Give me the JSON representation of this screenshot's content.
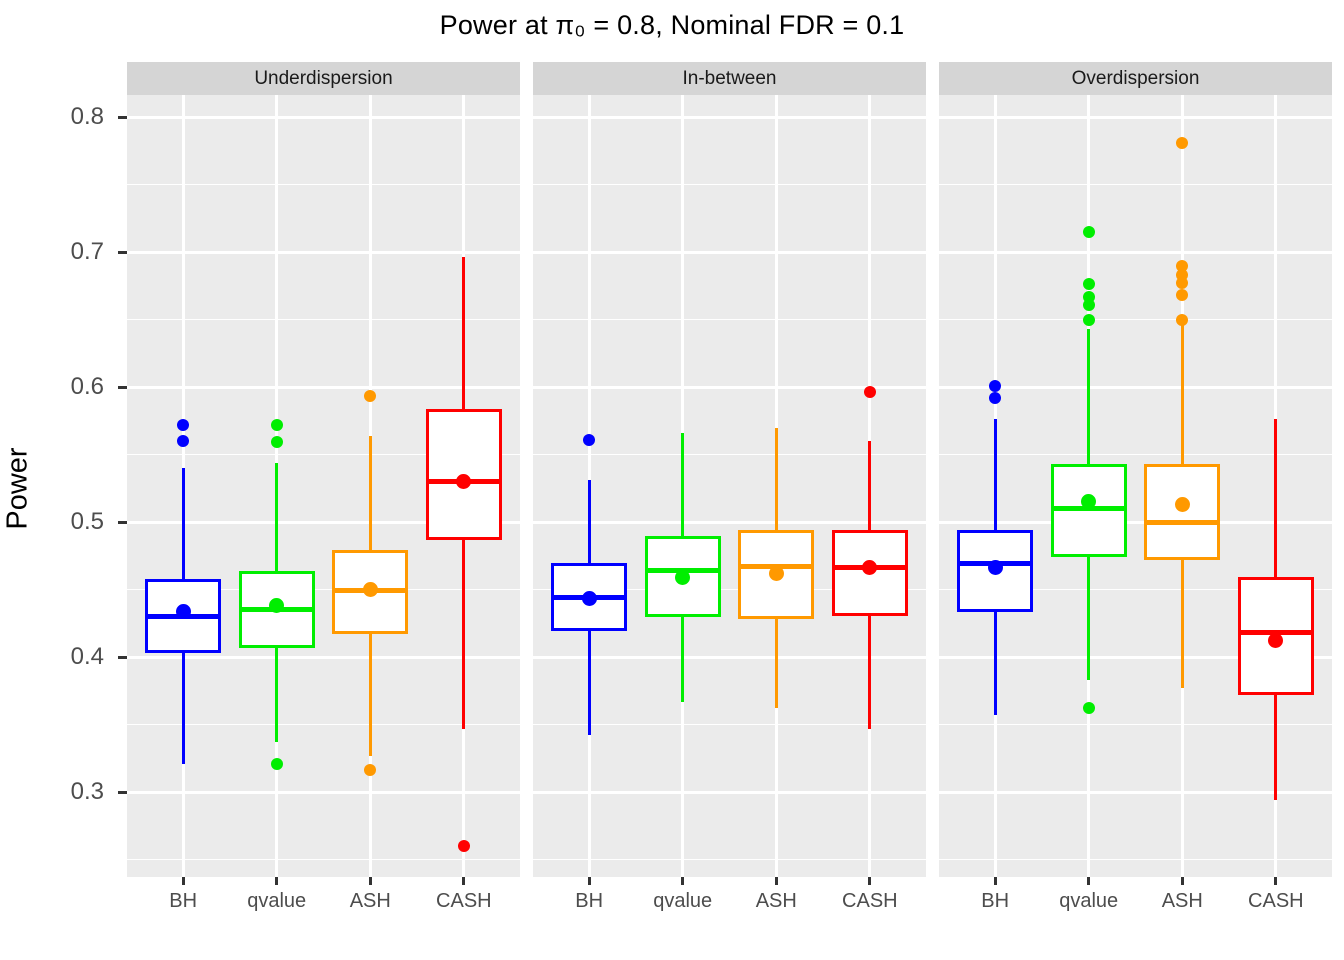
{
  "chart_data": {
    "type": "boxplot",
    "title": "Power at π₀ = 0.8, Nominal FDR = 0.1",
    "ylabel": "Power",
    "xlabel": "",
    "ylim": [
      0.237,
      0.816
    ],
    "y_ticks": [
      {
        "label": "0.8",
        "value": 0.8
      },
      {
        "label": "0.7",
        "value": 0.7
      },
      {
        "label": "0.6",
        "value": 0.6
      },
      {
        "label": "0.5",
        "value": 0.5
      },
      {
        "label": "0.4",
        "value": 0.4
      },
      {
        "label": "0.3",
        "value": 0.3
      }
    ],
    "grid": {
      "major_step": 0.1,
      "minor_step": 0.05,
      "lowest_line": 0.25,
      "highest_line": 0.8
    },
    "categories": [
      "BH",
      "qvalue",
      "ASH",
      "CASH"
    ],
    "colors": {
      "panel_bg": "#ebebeb",
      "strip_bg": "#d5d5d5",
      "grid": "#ffffff",
      "series": {
        "BH": "#0000ff",
        "qvalue": "#00ee00",
        "ASH": "#ff9900",
        "CASH": "#ff0000"
      }
    },
    "facets": [
      {
        "label": "Underdispersion",
        "boxes": [
          {
            "method": "BH",
            "whisker_low": 0.321,
            "q1": 0.403,
            "median": 0.43,
            "q3": 0.458,
            "whisker_high": 0.54,
            "mean": 0.434,
            "outliers": [
              0.572,
              0.56
            ]
          },
          {
            "method": "qvalue",
            "whisker_low": 0.337,
            "q1": 0.407,
            "median": 0.435,
            "q3": 0.464,
            "whisker_high": 0.544,
            "mean": 0.438,
            "outliers": [
              0.572,
              0.559,
              0.321
            ]
          },
          {
            "method": "ASH",
            "whisker_low": 0.327,
            "q1": 0.417,
            "median": 0.449,
            "q3": 0.479,
            "whisker_high": 0.564,
            "mean": 0.45,
            "outliers": [
              0.593,
              0.316
            ]
          },
          {
            "method": "CASH",
            "whisker_low": 0.347,
            "q1": 0.487,
            "median": 0.53,
            "q3": 0.584,
            "whisker_high": 0.696,
            "mean": 0.53,
            "outliers": [
              0.26
            ]
          }
        ]
      },
      {
        "label": "In-between",
        "boxes": [
          {
            "method": "BH",
            "whisker_low": 0.342,
            "q1": 0.419,
            "median": 0.444,
            "q3": 0.47,
            "whisker_high": 0.531,
            "mean": 0.443,
            "outliers": [
              0.561
            ]
          },
          {
            "method": "qvalue",
            "whisker_low": 0.367,
            "q1": 0.43,
            "median": 0.464,
            "q3": 0.49,
            "whisker_high": 0.566,
            "mean": 0.459,
            "outliers": []
          },
          {
            "method": "ASH",
            "whisker_low": 0.362,
            "q1": 0.428,
            "median": 0.467,
            "q3": 0.494,
            "whisker_high": 0.57,
            "mean": 0.462,
            "outliers": []
          },
          {
            "method": "CASH",
            "whisker_low": 0.347,
            "q1": 0.43,
            "median": 0.466,
            "q3": 0.494,
            "whisker_high": 0.56,
            "mean": 0.466,
            "outliers": [
              0.596
            ]
          }
        ]
      },
      {
        "label": "Overdispersion",
        "boxes": [
          {
            "method": "BH",
            "whisker_low": 0.357,
            "q1": 0.433,
            "median": 0.469,
            "q3": 0.494,
            "whisker_high": 0.576,
            "mean": 0.466,
            "outliers": [
              0.601,
              0.592
            ]
          },
          {
            "method": "qvalue",
            "whisker_low": 0.383,
            "q1": 0.474,
            "median": 0.51,
            "q3": 0.543,
            "whisker_high": 0.643,
            "mean": 0.515,
            "outliers": [
              0.715,
              0.676,
              0.667,
              0.661,
              0.65,
              0.362
            ]
          },
          {
            "method": "ASH",
            "whisker_low": 0.377,
            "q1": 0.472,
            "median": 0.5,
            "q3": 0.543,
            "whisker_high": 0.647,
            "mean": 0.513,
            "outliers": [
              0.781,
              0.69,
              0.683,
              0.677,
              0.668,
              0.65
            ]
          },
          {
            "method": "CASH",
            "whisker_low": 0.294,
            "q1": 0.372,
            "median": 0.418,
            "q3": 0.459,
            "whisker_high": 0.576,
            "mean": 0.412,
            "outliers": []
          }
        ]
      }
    ]
  }
}
